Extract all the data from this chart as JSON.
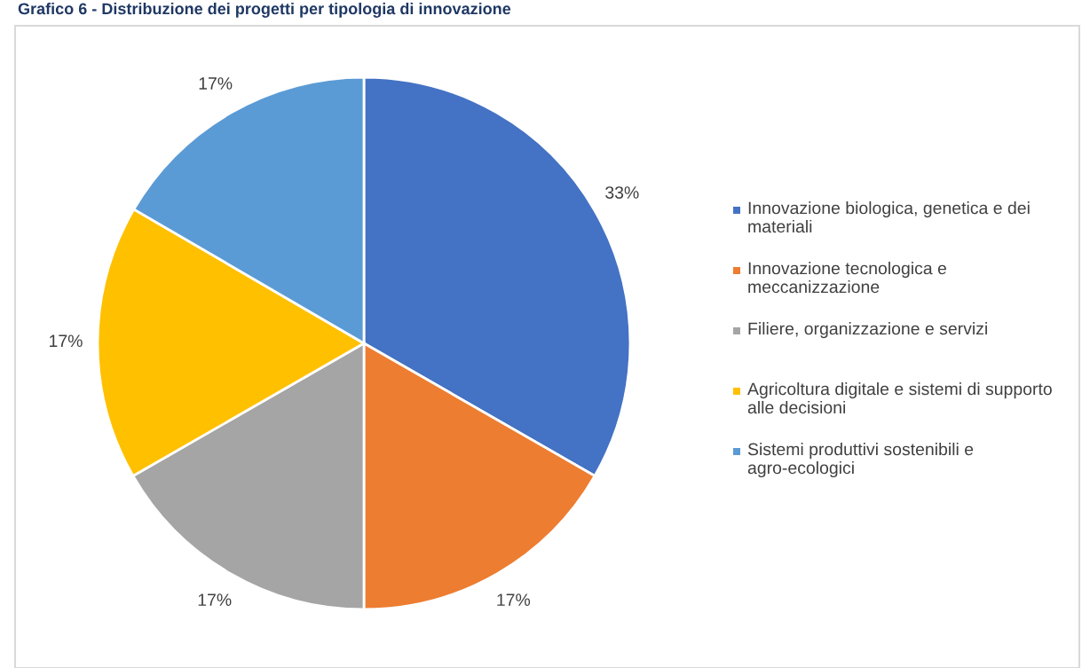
{
  "chart_data": {
    "type": "pie",
    "title": "Grafico 6 - Distribuzione dei progetti per tipologia di innovazione",
    "categories": [
      "Innovazione biologica, genetica e dei materiali",
      "Innovazione tecnologica e meccanizzazione",
      "Filiere, organizzazione e servizi",
      "Agricoltura digitale e sistemi di supporto alle decisioni",
      "Sistemi produttivi sostenibili e agro-ecologici"
    ],
    "values": [
      33.3,
      16.7,
      16.7,
      16.7,
      16.6
    ],
    "value_labels": [
      "33%",
      "17%",
      "17%",
      "17%",
      "17%"
    ],
    "colors": [
      "#4472c4",
      "#ed7d31",
      "#a5a5a5",
      "#ffc000",
      "#5b9bd5"
    ],
    "legend": "right"
  }
}
